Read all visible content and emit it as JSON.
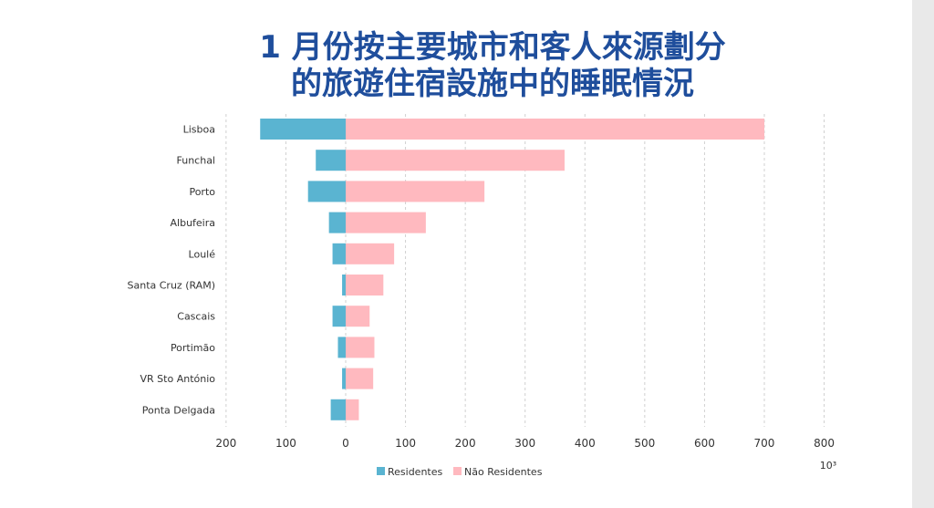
{
  "title_line1": "1 月份按主要城市和客人來源劃分",
  "title_line2": "的旅遊住宿設施中的睡眠情況",
  "chart_data": {
    "type": "bar",
    "orientation": "horizontal-diverging",
    "categories": [
      "Lisboa",
      "Funchal",
      "Porto",
      "Albufeira",
      "Loulé",
      "Santa Cruz (RAM)",
      "Cascais",
      "Portimão",
      "VR Sto António",
      "Ponta Delgada"
    ],
    "series": [
      {
        "name": "Residentes",
        "color": "#5ab4d1",
        "values": [
          143,
          50,
          63,
          28,
          22,
          6,
          22,
          13,
          6,
          25
        ]
      },
      {
        "name": "Não Residentes",
        "color": "#ffb9bf",
        "values": [
          700,
          366,
          232,
          134,
          81,
          63,
          40,
          48,
          46,
          22
        ]
      }
    ],
    "xlim": [
      -200,
      800
    ],
    "xticks": [
      -200,
      -100,
      0,
      100,
      200,
      300,
      400,
      500,
      600,
      700,
      800
    ],
    "xtick_labels": [
      "200",
      "100",
      "0",
      "100",
      "200",
      "300",
      "400",
      "500",
      "600",
      "700",
      "800"
    ],
    "unit": "10³",
    "grid": "vertical-dashed",
    "legend_position": "bottom"
  }
}
